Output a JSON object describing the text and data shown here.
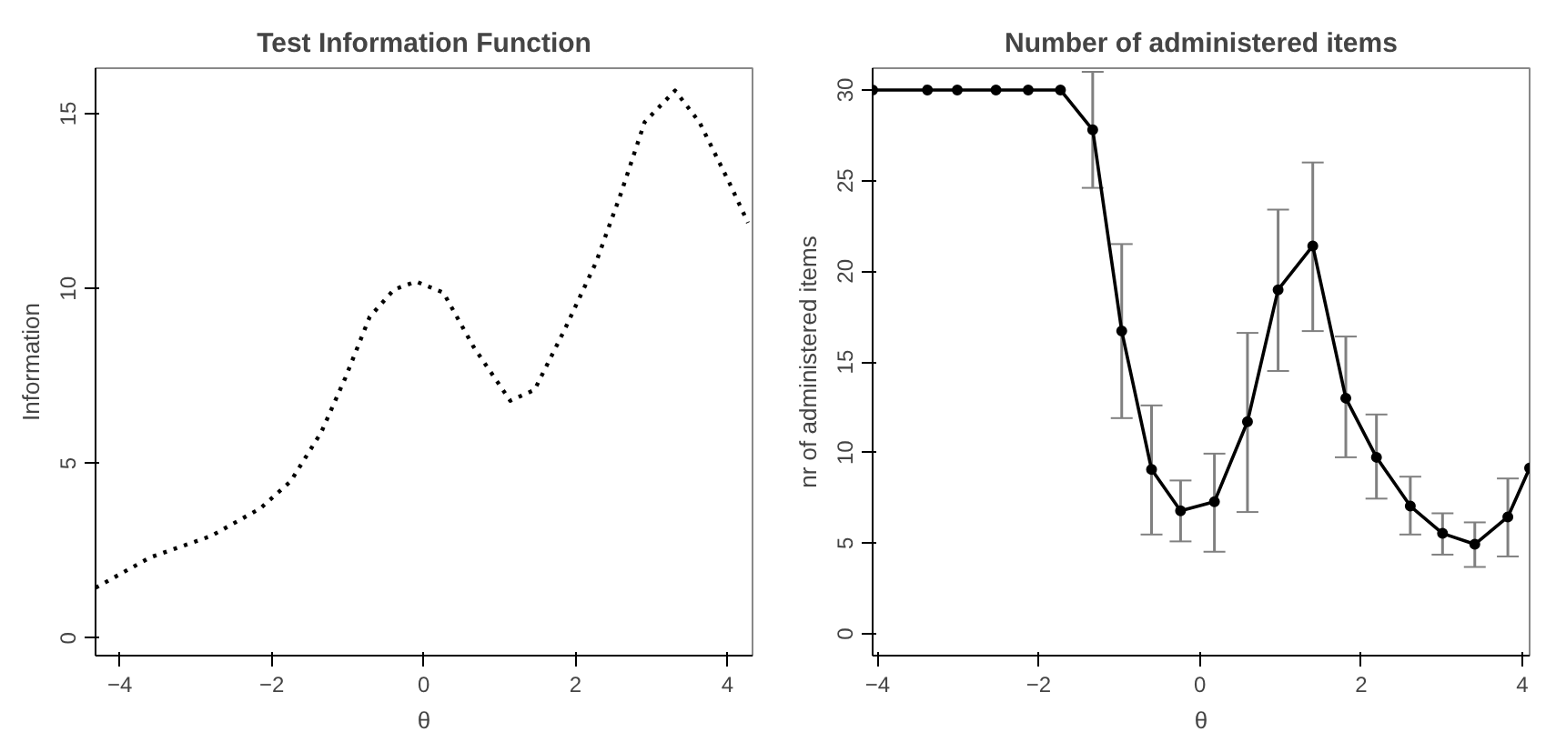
{
  "chart_data": [
    {
      "type": "line",
      "title": "Test Information Function",
      "xlabel": "θ",
      "ylabel": "Information",
      "xlim": [
        -4.32,
        4.33
      ],
      "ylim": [
        -0.5,
        16.3
      ],
      "xticks": [
        -4,
        -2,
        0,
        2,
        4
      ],
      "yticks": [
        0,
        5,
        10,
        15
      ],
      "grid": false,
      "line_style": "dotted",
      "marker": "none",
      "series": [
        {
          "color": "#000000",
          "x": [
            -4.32,
            -3.6,
            -2.8,
            -2.15,
            -1.75,
            -1.35,
            -1.03,
            -0.71,
            -0.39,
            -0.1,
            0.26,
            0.66,
            1.14,
            1.46,
            1.86,
            2.27,
            2.59,
            2.91,
            3.31,
            3.63,
            4.03,
            4.27
          ],
          "values": [
            1.44,
            2.31,
            2.92,
            3.71,
            4.49,
            5.88,
            7.45,
            9.19,
            9.97,
            10.2,
            9.88,
            8.32,
            6.79,
            7.1,
            8.84,
            10.75,
            12.67,
            14.76,
            15.66,
            14.76,
            13.0,
            11.88
          ]
        }
      ]
    },
    {
      "type": "line",
      "title": "Number of administered items",
      "xlabel": "θ",
      "ylabel": "nr of administered items",
      "xlim": [
        -4.06,
        4.09
      ],
      "ylim": [
        -1.2,
        31.2
      ],
      "xticks": [
        -4,
        -2,
        0,
        2,
        4
      ],
      "yticks": [
        0,
        5,
        10,
        15,
        20,
        25,
        30
      ],
      "grid": false,
      "line_style": "solid",
      "marker": "circle",
      "series": [
        {
          "color": "#000000",
          "x": [
            -4.06,
            -3.38,
            -3.01,
            -2.53,
            -2.13,
            -1.73,
            -1.33,
            -0.97,
            -0.6,
            -0.24,
            0.18,
            0.59,
            0.97,
            1.4,
            1.81,
            2.19,
            2.61,
            3.01,
            3.41,
            3.82,
            4.09
          ],
          "values": [
            30,
            30,
            30,
            30,
            30,
            30,
            27.8,
            16.7,
            9.07,
            6.79,
            7.29,
            11.7,
            18.98,
            21.4,
            13.0,
            9.74,
            7.05,
            5.54,
            4.94,
            6.45,
            9.14
          ],
          "errors": [
            null,
            null,
            null,
            null,
            null,
            null,
            [
              24.6,
              31.0
            ],
            [
              11.9,
              21.5
            ],
            [
              5.48,
              12.6
            ],
            [
              5.1,
              8.46
            ],
            [
              4.53,
              9.94
            ],
            [
              6.72,
              16.6
            ],
            [
              14.5,
              23.4
            ],
            [
              16.7,
              26.0
            ],
            [
              9.74,
              16.4
            ],
            [
              7.46,
              12.1
            ],
            [
              5.48,
              8.67
            ],
            [
              4.37,
              6.65
            ],
            [
              3.69,
              6.15
            ],
            [
              4.27,
              8.57
            ],
            null
          ]
        }
      ]
    }
  ]
}
